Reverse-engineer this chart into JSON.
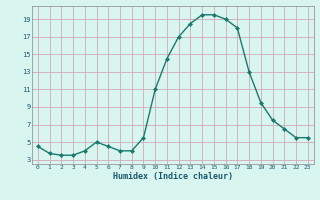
{
  "x": [
    0,
    1,
    2,
    3,
    4,
    5,
    6,
    7,
    8,
    9,
    10,
    11,
    12,
    13,
    14,
    15,
    16,
    17,
    18,
    19,
    20,
    21,
    22,
    23
  ],
  "y": [
    4.5,
    3.7,
    3.5,
    3.5,
    4.0,
    5.0,
    4.5,
    4.0,
    4.0,
    5.5,
    11.0,
    14.5,
    17.0,
    18.5,
    19.5,
    19.5,
    19.0,
    18.0,
    13.0,
    9.5,
    7.5,
    6.5,
    5.5,
    5.5
  ],
  "xlabel": "Humidex (Indice chaleur)",
  "line_color": "#1a7a6e",
  "marker_color": "#1a7a6e",
  "bg_color": "#d8f5f0",
  "grid_color_major": "#d4a8b8",
  "grid_color_minor": "#e8ccd8",
  "xlim": [
    -0.5,
    23.5
  ],
  "ylim": [
    2.5,
    20.5
  ],
  "yticks": [
    3,
    5,
    7,
    9,
    11,
    13,
    15,
    17,
    19
  ],
  "xticks": [
    0,
    1,
    2,
    3,
    4,
    5,
    6,
    7,
    8,
    9,
    10,
    11,
    12,
    13,
    14,
    15,
    16,
    17,
    18,
    19,
    20,
    21,
    22,
    23
  ],
  "xtick_labels": [
    "0",
    "1",
    "2",
    "3",
    "4",
    "5",
    "6",
    "7",
    "8",
    "9",
    "10",
    "11",
    "12",
    "13",
    "14",
    "15",
    "16",
    "17",
    "18",
    "19",
    "20",
    "21",
    "22",
    "23"
  ],
  "ytick_labels": [
    "3",
    "5",
    "7",
    "9",
    "11",
    "13",
    "15",
    "17",
    "19"
  ],
  "xlabel_color": "#1a5a70",
  "tick_color": "#1a5a70",
  "spine_color": "#888888"
}
